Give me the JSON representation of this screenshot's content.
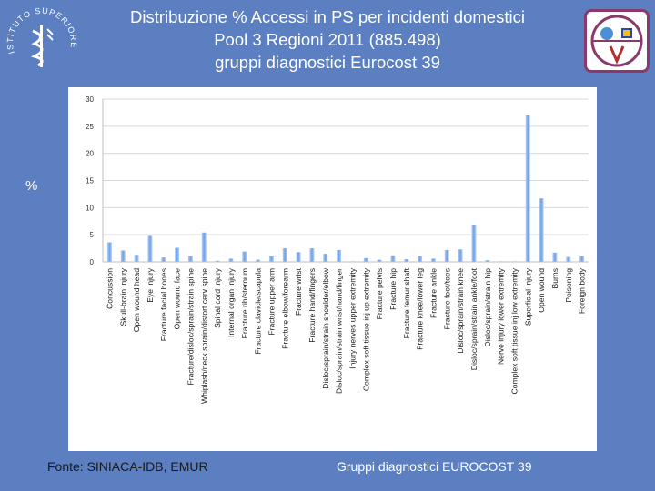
{
  "title_lines": [
    "Distribuzione % Accessi in PS per incidenti domestici",
    "Pool 3 Regioni 2011 (885.498)",
    "gruppi diagnostici Eurocost 39"
  ],
  "unit_label": "%",
  "footer": {
    "source": "Fonte: SINIACA-IDB, EMUR",
    "groups": "Gruppi diagnostici EUROCOST 39"
  },
  "logo_left_text": "ISTITUTO SUPERIORE DI SANITÀ",
  "colors": {
    "background": "#5b7fc0",
    "bar": "#6f9fe6",
    "bar_light": "#b9d2f7",
    "panel": "#ffffff"
  },
  "chart_data": {
    "type": "bar",
    "categories": [
      "Concussion",
      "Skull-brain injury",
      "Open wound head",
      "Eye injury",
      "Fracture facial bones",
      "Open wound face",
      "Fracture/disloc/sprain/strain spine",
      "Whiplash/neck sprain/distort cerv spine",
      "Spinal cord injury",
      "Internal organ injury",
      "Fracture rib/sternum",
      "Fracture clavicle/scapula",
      "Fracture upper arm",
      "Fracture elbow/forearm",
      "Fracture wrist",
      "Fracture hand/fingers",
      "Disloc/sprain/strain shoulder/elbow",
      "Disloc/sprain/strain wrist/hand/finger",
      "Injury nerves upper extremity",
      "Complex soft tissue inj up extremity",
      "Fracture pelvis",
      "Fracture hip",
      "Fracture femur shaft",
      "Fracture knee/lower leg",
      "Fracture ankle",
      "Fracture foot/toes",
      "Disloc/sprain/strain knee",
      "Disloc/sprain/strain ankle/foot",
      "Disloc/sprain/strain hip",
      "Nerve injury lower extremity",
      "Complex soft tissue inj low extremity",
      "Superficial injury",
      "Open wound",
      "Burns",
      "Poisoning",
      "Foreign body"
    ],
    "values": [
      3.6,
      2.1,
      1.3,
      4.8,
      0.8,
      2.6,
      1.1,
      5.4,
      0.2,
      0.6,
      1.9,
      0.4,
      1.0,
      2.5,
      1.8,
      2.5,
      1.5,
      2.2,
      0.1,
      0.7,
      0.4,
      1.2,
      0.5,
      1.1,
      0.6,
      2.2,
      2.3,
      6.7,
      0.3,
      0.1,
      0.1,
      27.0,
      11.7,
      1.7,
      0.9,
      1.1
    ],
    "ylim": [
      0,
      30
    ],
    "yticks": [
      0,
      5,
      10,
      15,
      20,
      25,
      30
    ],
    "grid": true,
    "legend": false,
    "xlabel": "",
    "ylabel": "%"
  }
}
